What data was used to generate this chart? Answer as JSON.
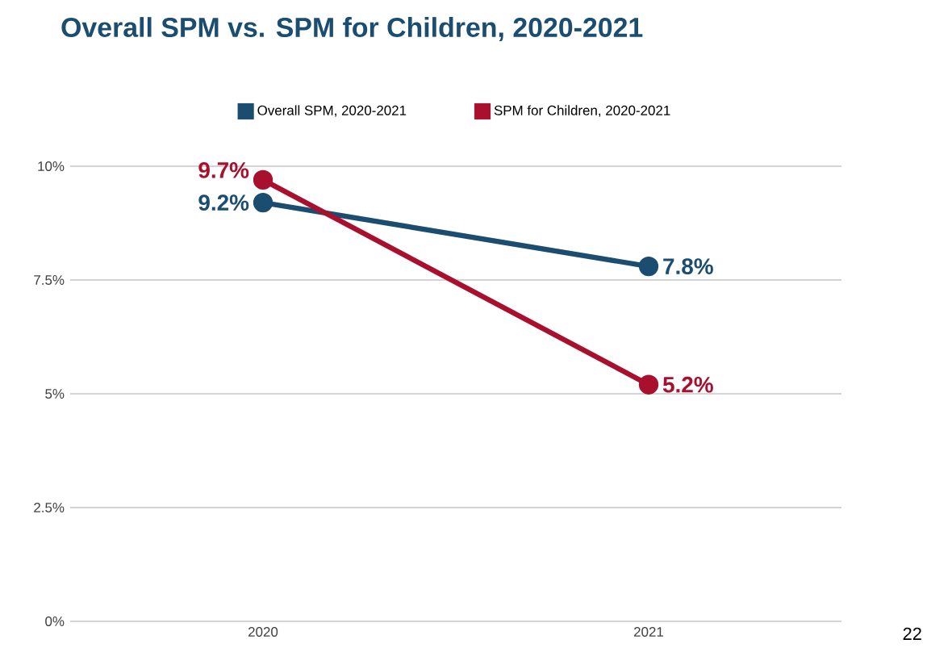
{
  "chart_data": {
    "type": "line",
    "title": "Overall SPM vs. SPM for Children, 2020-2021",
    "categories": [
      "2020",
      "2021"
    ],
    "series": [
      {
        "name": "Overall SPM, 2020-2021",
        "color": "#1b4d70",
        "values": [
          9.2,
          7.8
        ],
        "value_labels": [
          "9.2%",
          "7.8%"
        ]
      },
      {
        "name": "SPM for Children, 2020-2021",
        "color": "#a8102e",
        "values": [
          9.7,
          5.2
        ],
        "value_labels": [
          "9.7%",
          "5.2%"
        ]
      }
    ],
    "ylim": [
      0,
      10
    ],
    "yticks": [
      {
        "value": 0,
        "label": "0%"
      },
      {
        "value": 2.5,
        "label": "2.5%"
      },
      {
        "value": 5,
        "label": "5%"
      },
      {
        "value": 7.5,
        "label": "7.5%"
      },
      {
        "value": 10,
        "label": "10%"
      }
    ],
    "grid": "y",
    "legend": "top",
    "marker": "circle",
    "line_style": "solid",
    "annotations": [
      "22"
    ]
  }
}
